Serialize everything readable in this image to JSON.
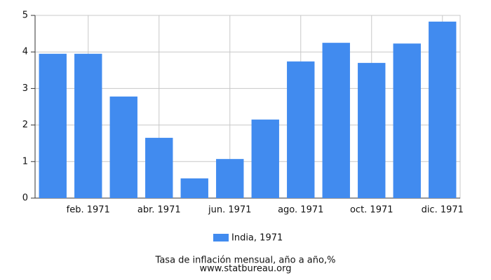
{
  "chart_data": {
    "type": "bar",
    "title": "Tasa de inflación mensual, año a año,%",
    "source": "www.statbureau.org",
    "categories": [
      null,
      "feb. 1971",
      null,
      "abr. 1971",
      null,
      "jun. 1971",
      null,
      "ago. 1971",
      null,
      "oct. 1971",
      null,
      "dic. 1971"
    ],
    "series": [
      {
        "name": "India, 1971",
        "color": "#418bef",
        "values": [
          3.95,
          3.95,
          2.78,
          1.65,
          0.54,
          1.07,
          2.15,
          3.74,
          4.25,
          3.7,
          4.23,
          4.83
        ]
      }
    ],
    "ylim": [
      0,
      5
    ],
    "yticks": [
      0,
      1,
      2,
      3,
      4,
      5
    ],
    "grid": true
  }
}
